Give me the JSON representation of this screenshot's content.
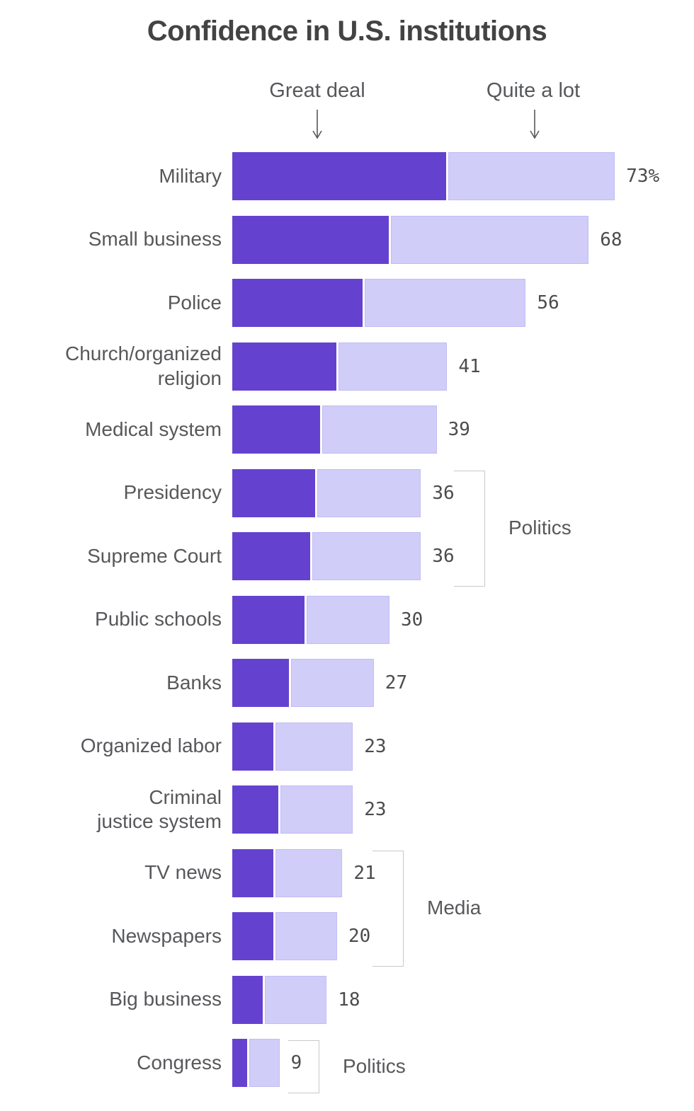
{
  "chart_data": {
    "type": "bar",
    "orientation": "horizontal",
    "title": "Confidence in U.S. institutions",
    "series_headers": [
      {
        "label": "Great deal"
      },
      {
        "label": "Quite a lot"
      }
    ],
    "categories": [
      "Military",
      "Small business",
      "Police",
      "Church/organized religion",
      "Medical system",
      "Presidency",
      "Supreme Court",
      "Public schools",
      "Banks",
      "Organized labor",
      "Criminal justice system",
      "TV news",
      "Newspapers",
      "Big business",
      "Congress"
    ],
    "category_display_labels": [
      "Military",
      "Small business",
      "Police",
      "Church/organized\nreligion",
      "Medical system",
      "Presidency",
      "Supreme Court",
      "Public schools",
      "Banks",
      "Organized labor",
      "Criminal\njustice system",
      "TV news",
      "Newspapers",
      "Big business",
      "Congress"
    ],
    "series": [
      {
        "name": "Great deal",
        "values": [
          41,
          30,
          25,
          20,
          17,
          16,
          15,
          14,
          11,
          8,
          9,
          8,
          8,
          6,
          3
        ]
      },
      {
        "name": "Quite a lot",
        "values": [
          32,
          38,
          31,
          21,
          22,
          20,
          21,
          16,
          16,
          15,
          14,
          13,
          12,
          12,
          6
        ]
      }
    ],
    "totals": [
      73,
      68,
      56,
      41,
      39,
      36,
      36,
      30,
      27,
      23,
      23,
      21,
      20,
      18,
      9
    ],
    "total_labels": [
      "73%",
      "68",
      "56",
      "41",
      "39",
      "36",
      "36",
      "30",
      "27",
      "23",
      "23",
      "21",
      "20",
      "18",
      "9"
    ],
    "groups": [
      {
        "label": "Politics",
        "start_row": 5,
        "end_row": 6
      },
      {
        "label": "Media",
        "start_row": 11,
        "end_row": 12
      },
      {
        "label": "Politics",
        "start_row": 14,
        "end_row": 14
      }
    ],
    "colors": {
      "great_deal": "#6442cf",
      "quite_a_lot": "#d0cdf8",
      "title_text": "#434345",
      "label_text": "#57585b",
      "value_text": "#4c4c4e",
      "bracket_line": "#c9c9c9"
    },
    "xlim": [
      0,
      100
    ],
    "grid": false,
    "legend_position": "top-arrows"
  }
}
